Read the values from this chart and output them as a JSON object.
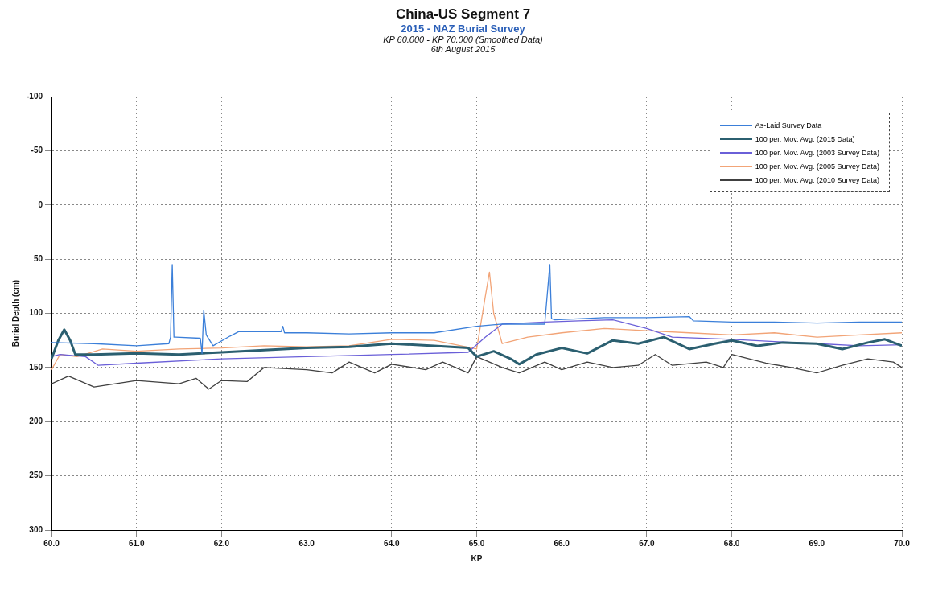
{
  "chart_data": {
    "type": "line",
    "title": "China-US Segment 7",
    "subtitle": "2015 - NAZ Burial Survey",
    "annotations": [
      "KP 60.000 - KP 70.000 (Smoothed Data)",
      "6th August 2015"
    ],
    "xlabel": "KP",
    "ylabel": "Burial Depth (cm)",
    "xlim": [
      60,
      70
    ],
    "xticks": [
      {
        "value": 60,
        "label": "60.0"
      },
      {
        "value": 61,
        "label": "61.0"
      },
      {
        "value": 62,
        "label": "62.0"
      },
      {
        "value": 63,
        "label": "63.0"
      },
      {
        "value": 64,
        "label": "64.0"
      },
      {
        "value": 65,
        "label": "65.0"
      },
      {
        "value": 66,
        "label": "66.0"
      },
      {
        "value": 67,
        "label": "67.0"
      },
      {
        "value": 68,
        "label": "68.0"
      },
      {
        "value": 69,
        "label": "69.0"
      },
      {
        "value": 70,
        "label": "70.0"
      }
    ],
    "ylim": [
      300,
      -100
    ],
    "yticks": [
      -100,
      -50,
      0,
      50,
      100,
      150,
      200,
      250,
      300
    ],
    "grid": true,
    "legend": "top right",
    "marker": "none",
    "line_style": "solid",
    "series": [
      {
        "name": "As-Laid Survey Data",
        "color": "#3b7fd9",
        "x": [
          60,
          60.5,
          61.0,
          61.38,
          61.4,
          61.42,
          61.44,
          61.46,
          61.75,
          61.77,
          61.79,
          61.82,
          61.9,
          62.1,
          62.2,
          62.7,
          62.72,
          62.74,
          63.0,
          63.5,
          64.0,
          64.5,
          65.0,
          65.3,
          65.8,
          65.86,
          65.88,
          65.92,
          66.5,
          67.0,
          67.5,
          67.55,
          68.0,
          68.5,
          69.0,
          69.5,
          70
        ],
        "values": [
          127,
          128,
          130,
          128,
          122,
          55,
          122,
          122,
          123,
          137,
          97,
          120,
          130,
          121,
          117,
          117,
          112,
          118,
          118,
          119,
          118,
          118,
          112,
          110,
          110,
          55,
          105,
          106,
          104,
          104,
          103,
          107,
          108,
          108,
          109,
          108,
          108
        ]
      },
      {
        "name": "100 per. Mov. Avg. (2015 Data)",
        "color": "#2b5f70",
        "x": [
          60,
          60.08,
          60.15,
          60.22,
          60.28,
          60.5,
          61.0,
          61.5,
          62.0,
          62.5,
          63.0,
          63.5,
          64.0,
          64.5,
          64.9,
          65.0,
          65.2,
          65.4,
          65.5,
          65.7,
          66.0,
          66.3,
          66.6,
          66.9,
          67.2,
          67.5,
          67.8,
          68.0,
          68.3,
          68.6,
          69.0,
          69.3,
          69.6,
          69.8,
          70
        ],
        "values": [
          142,
          125,
          115,
          125,
          138,
          138,
          137,
          138,
          136,
          134,
          132,
          131,
          128,
          130,
          132,
          140,
          135,
          142,
          147,
          138,
          132,
          137,
          125,
          128,
          122,
          133,
          128,
          125,
          130,
          127,
          128,
          133,
          127,
          124,
          130
        ]
      },
      {
        "name": "100 per. Mov. Avg. (2003 Survey Data)",
        "color": "#6a5fd8",
        "x": [
          60,
          60.1,
          60.4,
          60.55,
          61.0,
          62.0,
          63.0,
          64.0,
          64.9,
          65.1,
          65.3,
          65.8,
          66.2,
          66.6,
          67.0,
          67.3,
          68.0,
          68.5,
          69.0,
          69.5,
          70
        ],
        "values": [
          140,
          138,
          140,
          148,
          146,
          142,
          140,
          138,
          136,
          122,
          110,
          108,
          107,
          106,
          114,
          122,
          124,
          126,
          128,
          130,
          129
        ]
      },
      {
        "name": "100 per. Mov. Avg. (2005 Survey Data)",
        "color": "#f2a477",
        "x": [
          60,
          60.1,
          60.3,
          60.6,
          61.0,
          61.5,
          62.0,
          62.5,
          63.0,
          63.5,
          64.0,
          64.5,
          65.0,
          65.1,
          65.15,
          65.2,
          65.3,
          65.6,
          66.0,
          66.5,
          67.0,
          67.5,
          68.0,
          68.5,
          69.0,
          69.5,
          70
        ],
        "values": [
          152,
          138,
          140,
          133,
          135,
          133,
          132,
          130,
          131,
          130,
          124,
          125,
          133,
          85,
          62,
          100,
          128,
          122,
          118,
          114,
          116,
          118,
          120,
          118,
          122,
          120,
          118
        ]
      },
      {
        "name": "100 per. Mov. Avg. (2010 Survey Data)",
        "color": "#404040",
        "x": [
          60,
          60.2,
          60.5,
          61.0,
          61.5,
          61.7,
          61.85,
          62.0,
          62.3,
          62.5,
          63.0,
          63.3,
          63.5,
          63.8,
          64.0,
          64.4,
          64.6,
          64.9,
          65.0,
          65.3,
          65.5,
          65.8,
          66.0,
          66.3,
          66.6,
          66.9,
          67.1,
          67.3,
          67.7,
          67.9,
          68.0,
          68.4,
          68.7,
          69.0,
          69.3,
          69.6,
          69.9,
          70
        ],
        "values": [
          165,
          158,
          168,
          162,
          165,
          160,
          170,
          162,
          163,
          150,
          152,
          155,
          145,
          155,
          147,
          152,
          145,
          155,
          140,
          150,
          155,
          145,
          152,
          145,
          150,
          148,
          138,
          148,
          145,
          150,
          138,
          146,
          150,
          155,
          148,
          142,
          145,
          150
        ]
      }
    ]
  }
}
